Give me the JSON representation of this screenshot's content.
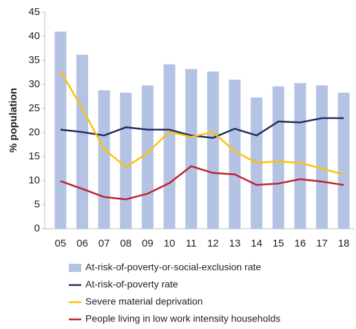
{
  "chart_data": {
    "type": "bar_line",
    "y_label": "% population",
    "categories": [
      "05",
      "06",
      "07",
      "08",
      "09",
      "10",
      "11",
      "12",
      "13",
      "14",
      "15",
      "16",
      "17",
      "18"
    ],
    "ylim": [
      0,
      45
    ],
    "yticks": [
      0,
      5,
      10,
      15,
      20,
      25,
      30,
      35,
      40,
      45
    ],
    "grid": false,
    "series": [
      {
        "name": "At-risk-of-poverty-or-social-exclusion rate",
        "kind": "bar",
        "color": "#b4c3e3",
        "values": [
          41,
          36.2,
          28.8,
          28.3,
          29.8,
          34.2,
          33.2,
          32.7,
          31,
          27.3,
          29.6,
          30.3,
          29.8,
          28.3
        ]
      },
      {
        "name": "At-risk-of-poverty rate",
        "kind": "line",
        "color": "#1f2d5c",
        "values": [
          20.6,
          20.1,
          19.4,
          21.1,
          20.6,
          20.6,
          19.4,
          18.9,
          20.8,
          19.4,
          22.3,
          22.1,
          23.0,
          23.0
        ]
      },
      {
        "name": "Severe material deprivation",
        "kind": "line",
        "color": "#ffc000",
        "values": [
          32.8,
          25,
          16.6,
          12.8,
          15.8,
          20.2,
          19.1,
          20.1,
          16.1,
          13.7,
          14.0,
          13.7,
          12.5,
          11.3
        ]
      },
      {
        "name": "People living in low work intensity households",
        "kind": "line",
        "color": "#c0202a",
        "values": [
          9.9,
          8.3,
          6.6,
          6.1,
          7.3,
          9.5,
          13.0,
          11.6,
          11.3,
          9.1,
          9.4,
          10.3,
          9.8,
          9.1
        ]
      }
    ]
  }
}
